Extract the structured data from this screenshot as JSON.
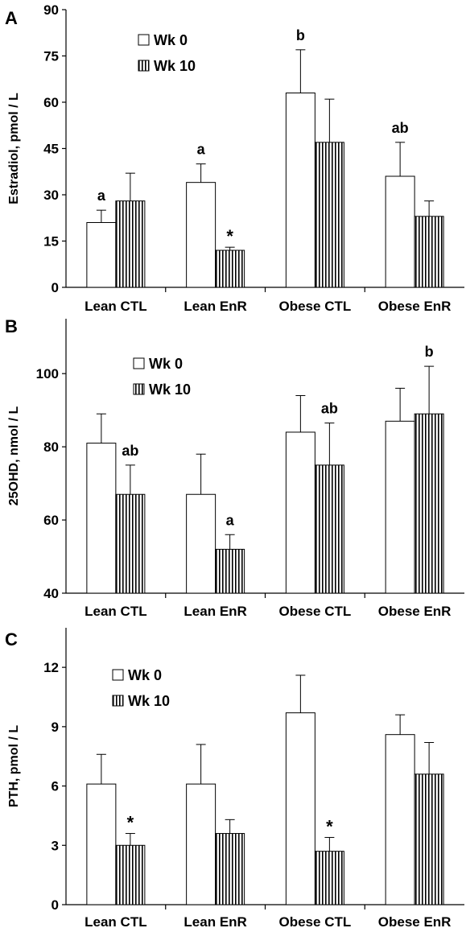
{
  "chart_data": [
    {
      "panel": "A",
      "type": "bar",
      "ylabel": "Estradiol, pmol / L",
      "ylim": [
        0,
        90
      ],
      "yticks": [
        0,
        15,
        30,
        45,
        60,
        75,
        90
      ],
      "categories": [
        "Lean CTL",
        "Lean EnR",
        "Obese CTL",
        "Obese EnR"
      ],
      "series": [
        {
          "name": "Wk 0",
          "values": [
            21,
            34,
            63,
            36
          ],
          "errors": [
            4,
            6,
            14,
            11
          ]
        },
        {
          "name": "Wk 10",
          "values": [
            28,
            12,
            47,
            23
          ],
          "errors": [
            9,
            1,
            14,
            5
          ]
        }
      ],
      "legend_placement": "top-left",
      "annotations": [
        {
          "category": 0,
          "series": 0,
          "text": "a"
        },
        {
          "category": 1,
          "series": 0,
          "text": "a"
        },
        {
          "category": 2,
          "series": 0,
          "text": "b"
        },
        {
          "category": 3,
          "series": 0,
          "text": "ab"
        },
        {
          "category": 1,
          "series": 1,
          "text": "*"
        }
      ]
    },
    {
      "panel": "B",
      "type": "bar",
      "ylabel": "25OHD, nmol / L",
      "ylim": [
        40,
        115
      ],
      "yticks": [
        40,
        60,
        80,
        100
      ],
      "categories": [
        "Lean CTL",
        "Lean EnR",
        "Obese CTL",
        "Obese EnR"
      ],
      "series": [
        {
          "name": "Wk 0",
          "values": [
            81,
            67,
            84,
            87
          ],
          "errors": [
            8,
            11,
            10,
            9
          ]
        },
        {
          "name": "Wk 10",
          "values": [
            67,
            52,
            75,
            89
          ],
          "errors": [
            8,
            4,
            11.5,
            13
          ]
        }
      ],
      "legend_placement": "top-left",
      "annotations": [
        {
          "category": 0,
          "series": 1,
          "text": "ab"
        },
        {
          "category": 1,
          "series": 1,
          "text": "a"
        },
        {
          "category": 2,
          "series": 1,
          "text": "ab"
        },
        {
          "category": 3,
          "series": 1,
          "text": "b"
        }
      ]
    },
    {
      "panel": "C",
      "type": "bar",
      "ylabel": "PTH, pmol / L",
      "ylim": [
        0,
        14
      ],
      "yticks": [
        0,
        3,
        6,
        9,
        12
      ],
      "categories": [
        "Lean CTL",
        "Lean EnR",
        "Obese CTL",
        "Obese EnR"
      ],
      "series": [
        {
          "name": "Wk 0",
          "values": [
            6.1,
            6.1,
            9.7,
            8.6
          ],
          "errors": [
            1.5,
            2.0,
            1.9,
            1.0
          ]
        },
        {
          "name": "Wk 10",
          "values": [
            3.0,
            3.6,
            2.7,
            6.6
          ],
          "errors": [
            0.6,
            0.7,
            0.7,
            1.6
          ]
        }
      ],
      "legend_placement": "top-left",
      "annotations": [
        {
          "category": 0,
          "series": 1,
          "text": "*"
        },
        {
          "category": 2,
          "series": 1,
          "text": "*"
        }
      ]
    }
  ]
}
